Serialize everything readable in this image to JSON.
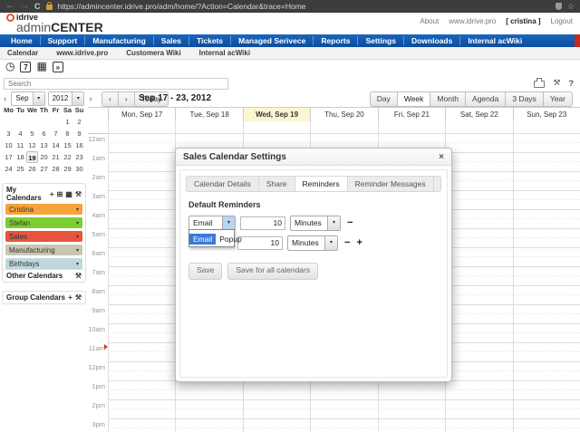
{
  "colors": {
    "nav_blue": "#0D52A6",
    "nav_accent_red": "#C3291D",
    "today_highlight": "#FBF6D2",
    "dropdown_selected": "#3B78D8"
  },
  "browser": {
    "url": "https://admincenter.idrive.pro/adm/home/?Action=Calendar&trace=Home",
    "back": "←",
    "forward": "→",
    "reload": "C",
    "star": "☆"
  },
  "header": {
    "brand_small": "idrive",
    "brand_large_light": "admin",
    "brand_large_bold": "CENTER",
    "links": [
      {
        "label": "About"
      },
      {
        "label": "www.idrive.pro"
      },
      {
        "label": "[ cristina ]",
        "cls": "user"
      },
      {
        "label": "Logout"
      }
    ]
  },
  "nav": {
    "items": [
      {
        "label": "Home"
      },
      {
        "label": "Support"
      },
      {
        "label": "Manufacturing"
      },
      {
        "label": "Sales"
      },
      {
        "label": "Tickets"
      },
      {
        "label": "Managed Serivece"
      },
      {
        "label": "Reports"
      },
      {
        "label": "Settings"
      },
      {
        "label": "Downloads"
      },
      {
        "label": "Internal acWiki"
      }
    ]
  },
  "subnav": {
    "items": [
      {
        "label": "Calendar"
      },
      {
        "label": "www.idrive.pro"
      },
      {
        "label": "Customera Wiki"
      },
      {
        "label": "Internal acWiki"
      }
    ]
  },
  "app_icons": {
    "clock": "◷",
    "calendar_day": "7",
    "grid": "▦",
    "terminal": "»"
  },
  "search": {
    "placeholder": "Search"
  },
  "toolbar_right": {
    "wrench": "⚒",
    "help": "?"
  },
  "calendar_toolbar": {
    "prev": "‹",
    "next": "›",
    "month": "Sep",
    "year": "2012",
    "arrow": "▾",
    "today": "Today",
    "range": "Sep 17 - 23, 2012",
    "views": [
      {
        "label": "Day"
      },
      {
        "label": "Week",
        "cls": "active"
      },
      {
        "label": "Month"
      },
      {
        "label": "Agenda"
      },
      {
        "label": "3 Days"
      },
      {
        "label": "Year"
      }
    ]
  },
  "mini_calendar": {
    "headers": [
      {
        "t": "Mo"
      },
      {
        "t": "Tu"
      },
      {
        "t": "We"
      },
      {
        "t": "Th"
      },
      {
        "t": "Fr"
      },
      {
        "t": "Sa"
      },
      {
        "t": "Su"
      }
    ],
    "cells": [
      {
        "t": ""
      },
      {
        "t": ""
      },
      {
        "t": ""
      },
      {
        "t": ""
      },
      {
        "t": ""
      },
      {
        "t": "1"
      },
      {
        "t": "2"
      },
      {
        "t": "3"
      },
      {
        "t": "4"
      },
      {
        "t": "5"
      },
      {
        "t": "6"
      },
      {
        "t": "7"
      },
      {
        "t": "8"
      },
      {
        "t": "9"
      },
      {
        "t": "10"
      },
      {
        "t": "11"
      },
      {
        "t": "12"
      },
      {
        "t": "13"
      },
      {
        "t": "14"
      },
      {
        "t": "15"
      },
      {
        "t": "16"
      },
      {
        "t": "17"
      },
      {
        "t": "18"
      },
      {
        "t": "19",
        "cls": "sel"
      },
      {
        "t": "20"
      },
      {
        "t": "21"
      },
      {
        "t": "22"
      },
      {
        "t": "23"
      },
      {
        "t": "24"
      },
      {
        "t": "25"
      },
      {
        "t": "26"
      },
      {
        "t": "27"
      },
      {
        "t": "28"
      },
      {
        "t": "29"
      },
      {
        "t": "30"
      }
    ]
  },
  "sidebar": {
    "my_calendars": {
      "title": "My Calendars",
      "icons": {
        "add": "+",
        "copy": "⊞",
        "grid": "▦",
        "wrench": "⚒"
      },
      "chevron": "▾",
      "items": [
        {
          "label": "Cristina",
          "color": "#F5A33A"
        },
        {
          "label": "Stefan",
          "color": "#7CCE31"
        },
        {
          "label": "Sales",
          "color": "#E8533C"
        },
        {
          "label": "Manufacturing",
          "color": "#C9C6B2"
        },
        {
          "label": "Birthdays",
          "color": "#BFD8DD"
        }
      ]
    },
    "other_calendars": {
      "title": "Other Calendars",
      "wrench": "⚒"
    },
    "group_calendars": {
      "title": "Group Calendars",
      "add": "+",
      "wrench": "⚒"
    }
  },
  "week": {
    "days": [
      {
        "label": "Mon, Sep 17"
      },
      {
        "label": "Tue, Sep 18"
      },
      {
        "label": "Wed, Sep 19",
        "cls": "today"
      },
      {
        "label": "Thu, Sep 20"
      },
      {
        "label": "Fri, Sep 21"
      },
      {
        "label": "Sat, Sep 22"
      },
      {
        "label": "Sun, Sep 23"
      }
    ],
    "hours": [
      {
        "t": "12am"
      },
      {
        "t": "1am"
      },
      {
        "t": "2am"
      },
      {
        "t": "3am"
      },
      {
        "t": "4am"
      },
      {
        "t": "5am"
      },
      {
        "t": "6am"
      },
      {
        "t": "7am"
      },
      {
        "t": "8am"
      },
      {
        "t": "9am"
      },
      {
        "t": "10am"
      },
      {
        "t": "11am"
      },
      {
        "t": "12pm"
      },
      {
        "t": "1pm"
      },
      {
        "t": "2pm"
      },
      {
        "t": "3pm"
      }
    ]
  },
  "modal": {
    "title": "Sales Calendar Settings",
    "close": "×",
    "tabs": [
      {
        "label": "Calendar Details"
      },
      {
        "label": "Share"
      },
      {
        "label": "Reminders",
        "cls": "active"
      },
      {
        "label": "Reminder Messages"
      }
    ],
    "section": "Default Reminders",
    "row1": {
      "type": "Email",
      "value": "10",
      "unit": "Minutes"
    },
    "row2": {
      "value": "10",
      "unit": "Minutes"
    },
    "dropdown": [
      {
        "label": "Email",
        "cls": "sel"
      },
      {
        "label": "Popup"
      }
    ],
    "minus": "−",
    "plus": "+",
    "save": "Save",
    "save_all": "Save for all calendars"
  }
}
